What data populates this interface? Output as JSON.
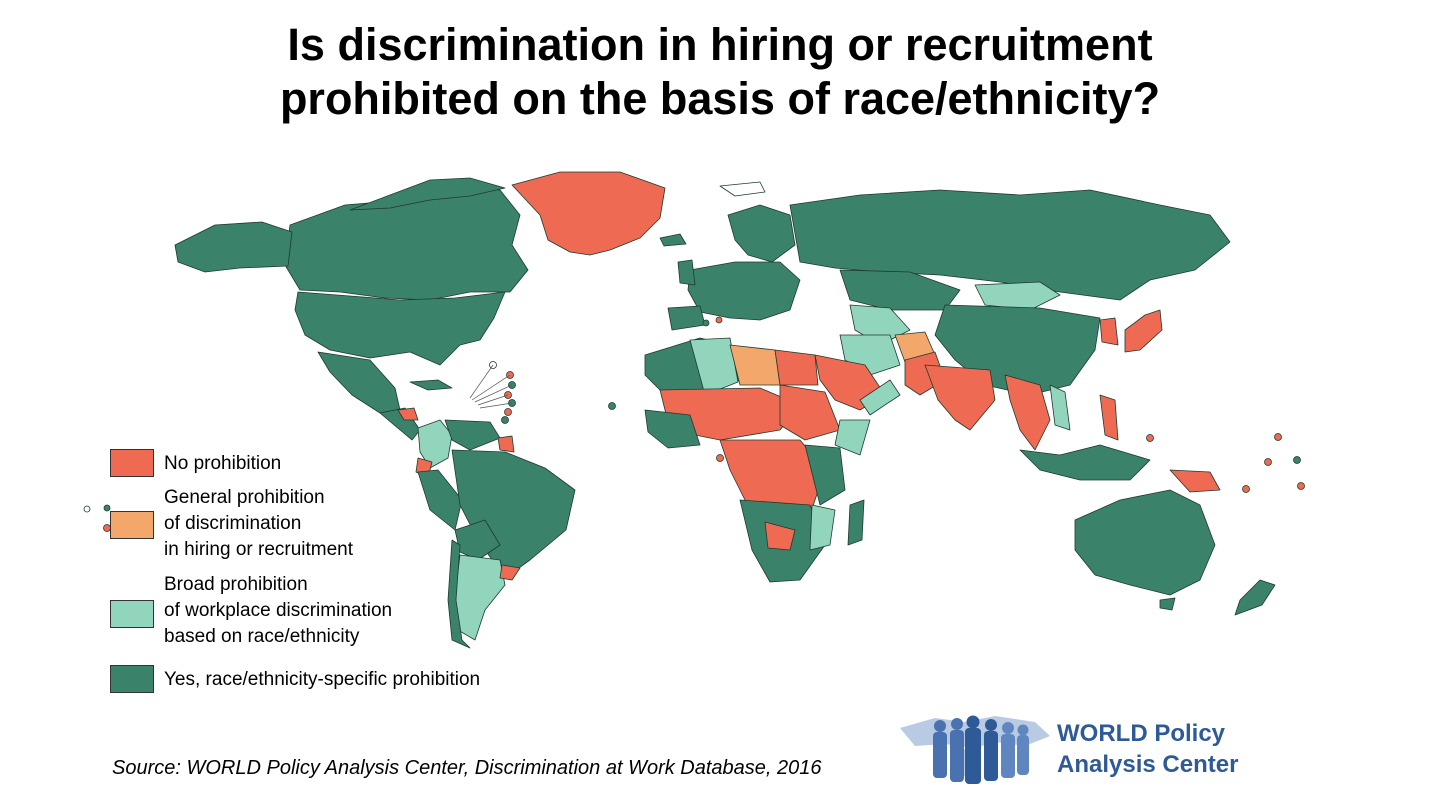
{
  "title": {
    "line1": "Is discrimination in hiring or recruitment",
    "line2": "prohibited on the basis of race/ethnicity?"
  },
  "colors": {
    "no_prohibition": "#ef6a52",
    "general_prohibition": "#f4a76a",
    "broad_prohibition": "#92d5bd",
    "specific_prohibition": "#3b826b",
    "border": "#1f3a30",
    "logo_blue": "#2e5a98"
  },
  "legend": [
    {
      "key": "no_prohibition",
      "label": "No prohibition"
    },
    {
      "key": "general_prohibition",
      "label": "General prohibition\nof discrimination\nin hiring or recruitment"
    },
    {
      "key": "broad_prohibition",
      "label": "Broad prohibition\nof workplace discrimination\nbased on race/ethnicity"
    },
    {
      "key": "specific_prohibition",
      "label": "Yes, race/ethnicity-specific prohibition"
    }
  ],
  "source": "Source: WORLD Policy Analysis Center, Discrimination at Work Database, 2016",
  "logo": {
    "line1": "WORLD Policy",
    "line2": "Analysis Center"
  }
}
